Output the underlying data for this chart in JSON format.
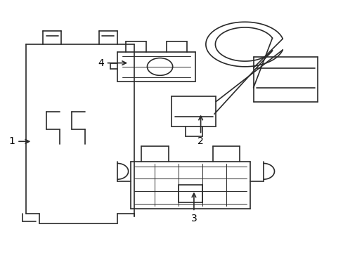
{
  "bg_color": "#ffffff",
  "line_color": "#2a2a2a",
  "label_color": "#000000",
  "line_width": 1.2,
  "thin_lw": 0.7
}
